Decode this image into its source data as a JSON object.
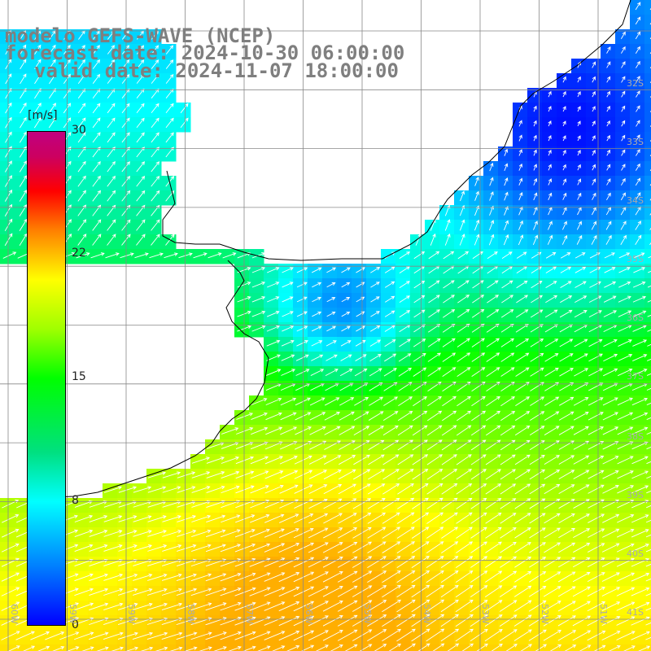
{
  "title": {
    "line1": "modelo GEFS-WAVE (NCEP)",
    "line2": "forecast date: 2024-10-30 06:00:00",
    "line3": "valid date: 2024-11-07 18:00:00"
  },
  "colorbar": {
    "unit": "[m/s]",
    "ticks": [
      "30",
      "22",
      "15",
      "8",
      "0"
    ],
    "tick_values": [
      30,
      22,
      15,
      8,
      0
    ],
    "colors": [
      "#0000ff",
      "#0080ff",
      "#00ffff",
      "#00ff00",
      "#ffff00",
      "#ff8000",
      "#ff0000",
      "#c00080"
    ]
  },
  "lat_labels": [
    "32S",
    "33S",
    "34S",
    "35S",
    "36S",
    "37S",
    "38S",
    "39S",
    "40S",
    "41S"
  ],
  "lon_labels": [
    "60W",
    "59W",
    "58W",
    "57W",
    "56W",
    "55W",
    "54W",
    "53W",
    "52W",
    "51W"
  ],
  "colors": {
    "grid": "#888888",
    "coast": "#000000",
    "title": "#7f7f7f",
    "arrow": "#ffffff"
  }
}
